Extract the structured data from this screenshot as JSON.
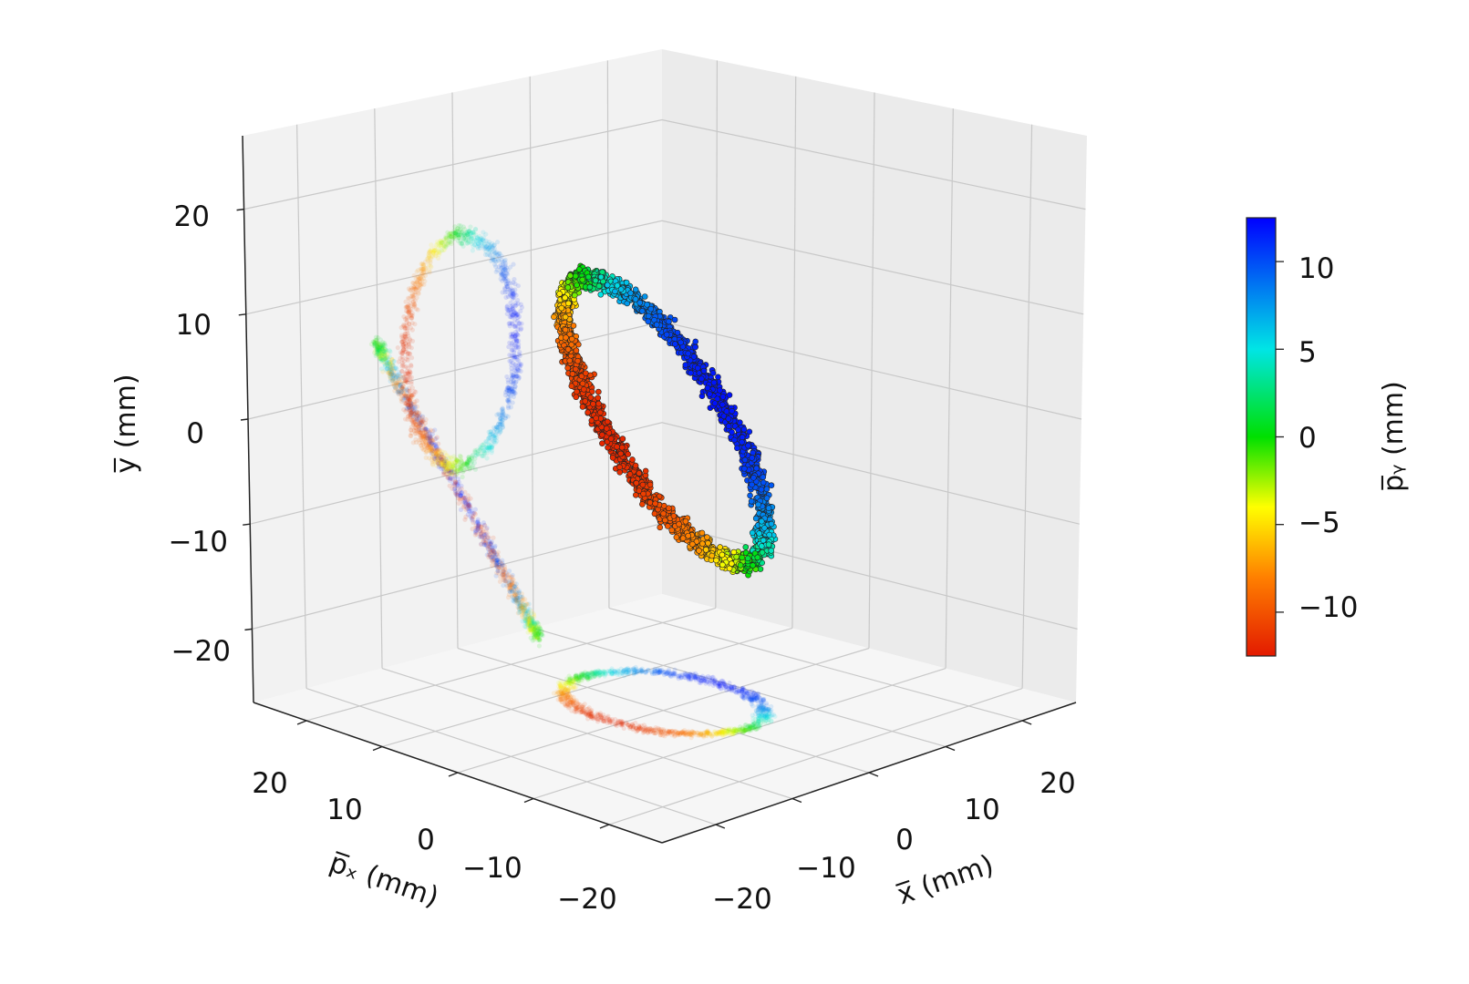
{
  "chart_data": {
    "type": "scatter",
    "view": "3d",
    "x_axis": {
      "label": "x̅ (mm)",
      "ticks": [
        -20,
        -10,
        0,
        10,
        20
      ],
      "range": [
        -27,
        27
      ]
    },
    "px_axis": {
      "label": "p̅ₓ (mm)",
      "ticks": [
        20,
        10,
        0,
        -10,
        -20
      ],
      "range": [
        -27,
        27
      ]
    },
    "y_axis": {
      "label": "y̅ (mm)",
      "ticks": [
        20,
        10,
        0,
        -10,
        -20
      ],
      "range": [
        -27,
        27
      ]
    },
    "colorbar": {
      "label": "p̅ᵧ (mm)",
      "ticks": [
        10,
        5,
        0,
        -5,
        -10
      ],
      "range": [
        -12.5,
        12.5
      ],
      "colormap": [
        "#e31a00",
        "#ff8000",
        "#ffff00",
        "#00e000",
        "#00e5e5",
        "#0000ff"
      ]
    },
    "grid": true,
    "series": [
      {
        "type": "curve-samples",
        "note_shape": "figure-eight 3d curve projected on walls",
        "points": [
          {
            "x": 3.0,
            "px": 0.0,
            "y": 0.0,
            "py": 12.0
          },
          {
            "x": 2.8,
            "px": 3.1,
            "y": 3.6,
            "py": 11.4
          },
          {
            "x": 2.3,
            "px": 5.9,
            "y": 6.9,
            "py": 9.7
          },
          {
            "x": 1.5,
            "px": 8.1,
            "y": 9.5,
            "py": 7.1
          },
          {
            "x": 0.6,
            "px": 9.5,
            "y": 11.2,
            "py": 3.7
          },
          {
            "x": -0.3,
            "px": 10.0,
            "y": 11.8,
            "py": 0.0
          },
          {
            "x": -1.2,
            "px": 9.5,
            "y": 11.2,
            "py": -3.7
          },
          {
            "x": -2.0,
            "px": 8.1,
            "y": 9.5,
            "py": -7.1
          },
          {
            "x": -2.6,
            "px": 5.9,
            "y": 6.9,
            "py": -9.7
          },
          {
            "x": -3.0,
            "px": 3.1,
            "y": 3.6,
            "py": -11.4
          },
          {
            "x": -3.0,
            "px": 0.0,
            "y": 0.0,
            "py": -12.0
          },
          {
            "x": -2.8,
            "px": -3.1,
            "y": -3.6,
            "py": -11.4
          },
          {
            "x": -2.3,
            "px": -5.9,
            "y": -6.9,
            "py": -9.7
          },
          {
            "x": -1.5,
            "px": -8.1,
            "y": -9.5,
            "py": -7.1
          },
          {
            "x": -0.6,
            "px": -9.5,
            "y": -11.2,
            "py": -3.7
          },
          {
            "x": 0.3,
            "px": -10.0,
            "y": -11.8,
            "py": 0.0
          },
          {
            "x": 1.2,
            "px": -9.5,
            "y": -11.2,
            "py": 3.7
          },
          {
            "x": 2.0,
            "px": -8.1,
            "y": -9.5,
            "py": 7.1
          },
          {
            "x": 2.6,
            "px": -5.9,
            "y": -6.9,
            "py": 9.7
          },
          {
            "x": 3.0,
            "px": -3.1,
            "y": -3.6,
            "py": 11.4
          }
        ]
      }
    ]
  }
}
